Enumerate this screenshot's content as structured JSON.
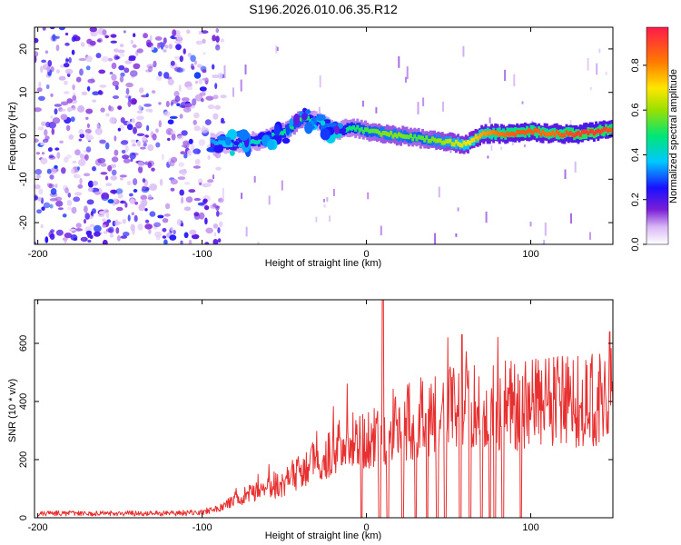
{
  "title": "S196.2026.010.06.35.R12",
  "chart_data": [
    {
      "type": "heatmap",
      "title": "S196.2026.010.06.35.R12",
      "xlabel": "Height of straight line (km)",
      "ylabel": "Frequency (Hz)",
      "xlim": [
        -202,
        150
      ],
      "ylim": [
        -25,
        25
      ],
      "xticks": [
        -200,
        -100,
        0,
        100
      ],
      "yticks": [
        -20,
        -10,
        0,
        10,
        20
      ],
      "colorbar": {
        "label": "Normalized spectral amplitude",
        "range": [
          0.0,
          0.97
        ],
        "ticks": [
          0.0,
          0.2,
          0.4,
          0.6,
          0.8
        ]
      },
      "ridge": {
        "description": "Dominant signal frequency vs height",
        "x": [
          -95,
          -80,
          -65,
          -50,
          -40,
          -30,
          -20,
          -10,
          0,
          10,
          20,
          30,
          40,
          50,
          60,
          70,
          80,
          90,
          100,
          110,
          120,
          130,
          140,
          150
        ],
        "y": [
          -1.5,
          -2,
          -1,
          1,
          4,
          3.5,
          1,
          2,
          1,
          0.5,
          0,
          -0.5,
          -1,
          -1.5,
          -2,
          0.5,
          0.5,
          0.5,
          1,
          0.5,
          0.5,
          0.5,
          1,
          1.5
        ],
        "amplitude": [
          0.35,
          0.4,
          0.45,
          0.5,
          0.55,
          0.4,
          0.45,
          0.5,
          0.55,
          0.6,
          0.6,
          0.55,
          0.6,
          0.65,
          0.7,
          0.8,
          0.85,
          0.9,
          0.9,
          0.85,
          0.9,
          0.95,
          0.95,
          0.9
        ]
      },
      "noise_region": {
        "x_from": -202,
        "x_to": -95,
        "amplitude": [
          0.05,
          0.3
        ]
      }
    },
    {
      "type": "line",
      "xlabel": "Height of straight line (km)",
      "ylabel": "SNR (10 * v/v)",
      "xlim": [
        -202,
        150
      ],
      "ylim": [
        0,
        750
      ],
      "xticks": [
        -200,
        -100,
        0,
        100
      ],
      "yticks": [
        0,
        200,
        400,
        600
      ],
      "color": "#e83030",
      "series": [
        {
          "name": "SNR",
          "x": [
            -200,
            -180,
            -160,
            -140,
            -120,
            -100,
            -90,
            -80,
            -70,
            -60,
            -50,
            -40,
            -30,
            -20,
            -10,
            0,
            10,
            20,
            30,
            40,
            50,
            60,
            70,
            80,
            90,
            100,
            110,
            120,
            130,
            140,
            150
          ],
          "values": [
            15,
            15,
            15,
            15,
            15,
            18,
            35,
            70,
            95,
            105,
            135,
            170,
            215,
            255,
            280,
            305,
            330,
            345,
            365,
            390,
            405,
            410,
            415,
            420,
            420,
            420,
            425,
            430,
            430,
            435,
            440
          ]
        }
      ],
      "peaks": [
        {
          "x": 10,
          "value": 750
        },
        {
          "x": 58,
          "value": 630
        },
        {
          "x": 148,
          "value": 640
        }
      ],
      "dropouts_x": [
        -3,
        8,
        13,
        22,
        30,
        37,
        43,
        48,
        57,
        63,
        70,
        75,
        78,
        83,
        94
      ]
    }
  ]
}
